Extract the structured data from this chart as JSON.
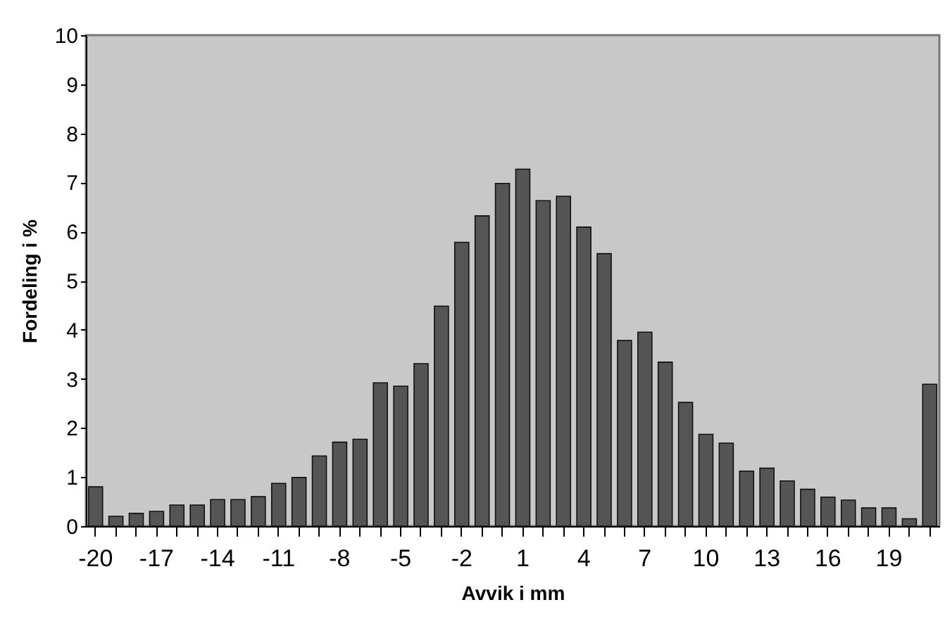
{
  "chart_data": {
    "type": "bar",
    "xlabel": "Avvik i mm",
    "ylabel": "Fordeling i %",
    "categories": [
      "-20",
      null,
      null,
      "-17",
      null,
      null,
      "-14",
      null,
      null,
      "-11",
      null,
      null,
      "-8",
      null,
      null,
      "-5",
      null,
      null,
      "-2",
      null,
      null,
      "1",
      null,
      null,
      "4",
      null,
      null,
      "7",
      null,
      null,
      "10",
      null,
      null,
      "13",
      null,
      null,
      "16",
      null,
      null,
      "19",
      null,
      null
    ],
    "values": [
      0.8,
      0.2,
      0.26,
      0.3,
      0.43,
      0.43,
      0.54,
      0.54,
      0.6,
      0.87,
      0.99,
      1.43,
      1.71,
      1.77,
      2.92,
      2.85,
      3.31,
      4.48,
      5.78,
      6.32,
      6.98,
      7.27,
      6.63,
      6.72,
      6.09,
      5.55,
      3.78,
      3.95,
      3.34,
      2.52,
      1.87,
      1.69,
      1.12,
      1.18,
      0.92,
      0.75,
      0.59,
      0.53,
      0.37,
      0.37,
      0.15,
      2.89
    ],
    "color": "#555555",
    "ylim": [
      0,
      10
    ],
    "yticks": [
      0,
      1,
      2,
      3,
      4,
      5,
      6,
      7,
      8,
      9,
      10
    ],
    "grid": false
  }
}
